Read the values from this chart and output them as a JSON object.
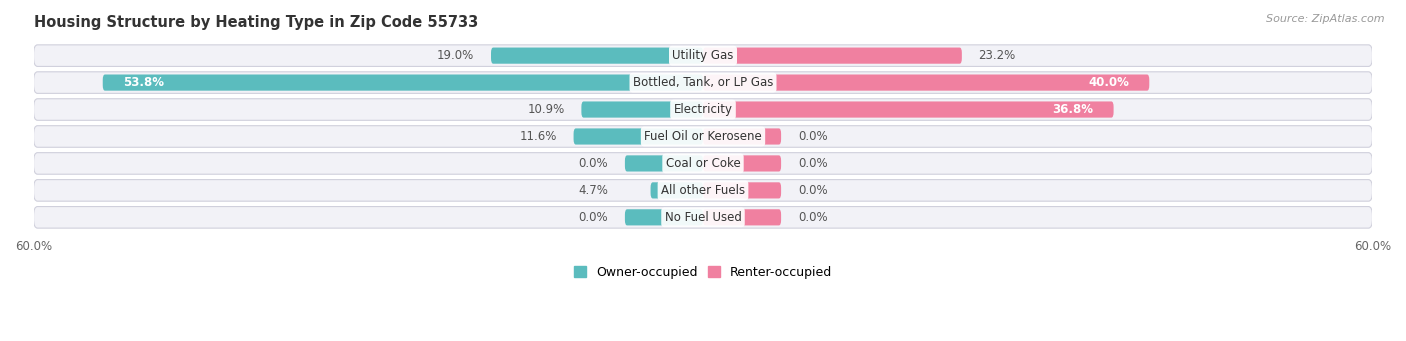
{
  "title": "Housing Structure by Heating Type in Zip Code 55733",
  "source": "Source: ZipAtlas.com",
  "categories": [
    "Utility Gas",
    "Bottled, Tank, or LP Gas",
    "Electricity",
    "Fuel Oil or Kerosene",
    "Coal or Coke",
    "All other Fuels",
    "No Fuel Used"
  ],
  "owner_values": [
    19.0,
    53.8,
    10.9,
    11.6,
    0.0,
    4.7,
    0.0
  ],
  "renter_values": [
    23.2,
    40.0,
    36.8,
    0.0,
    0.0,
    0.0,
    0.0
  ],
  "owner_color": "#5bbcbe",
  "renter_color": "#f080a0",
  "bar_bg_color": "#f2f2f7",
  "bar_bg_edge_color": "#d0d0dc",
  "label_color_white": "#ffffff",
  "label_color_dark": "#555555",
  "axis_limit": 60.0,
  "min_bar_width": 7.0,
  "title_fontsize": 10.5,
  "source_fontsize": 8,
  "bar_label_fontsize": 8.5,
  "category_fontsize": 8.5,
  "legend_fontsize": 9,
  "axis_tick_fontsize": 8.5,
  "background_color": "#ffffff",
  "legend_label_owner": "Owner-occupied",
  "legend_label_renter": "Renter-occupied"
}
